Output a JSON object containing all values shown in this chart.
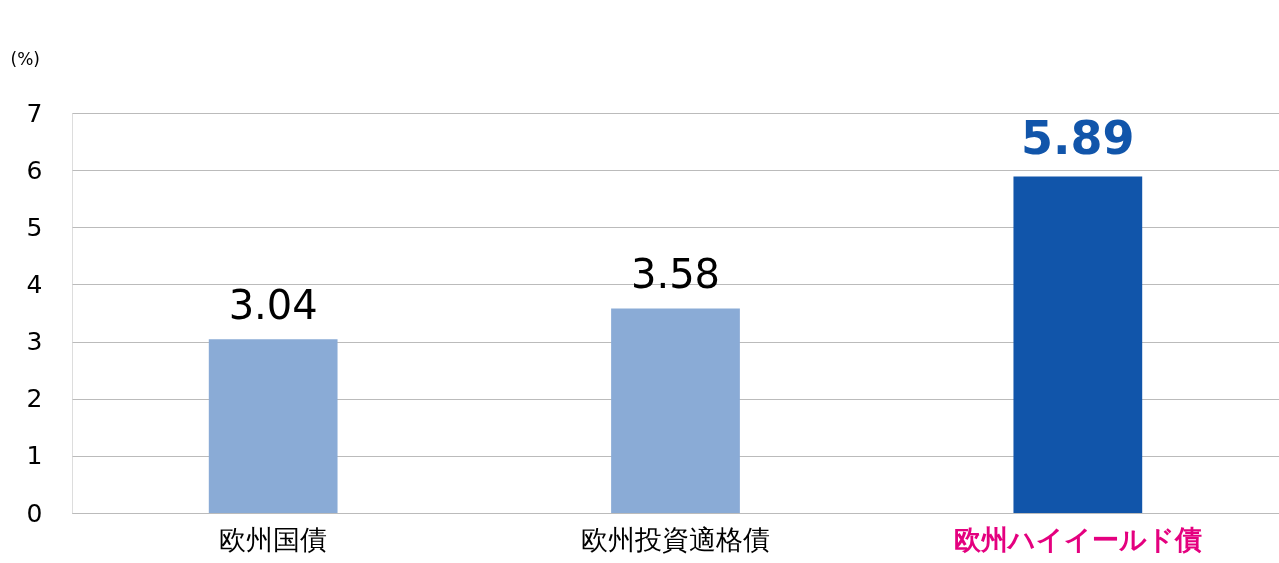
{
  "chart_data": {
    "type": "bar",
    "ylabel": "(%)",
    "categories": [
      "欧州国債",
      "欧州投資適格債",
      "欧州ハイイールド債"
    ],
    "values": [
      3.04,
      3.58,
      5.89
    ],
    "colors": [
      "#8aabd6",
      "#8aabd6",
      "#1155aa"
    ],
    "ylim": [
      0,
      7
    ],
    "yticks": [
      0,
      1,
      2,
      3,
      4,
      5,
      6,
      7
    ],
    "grid": "y",
    "data_labels": true
  }
}
